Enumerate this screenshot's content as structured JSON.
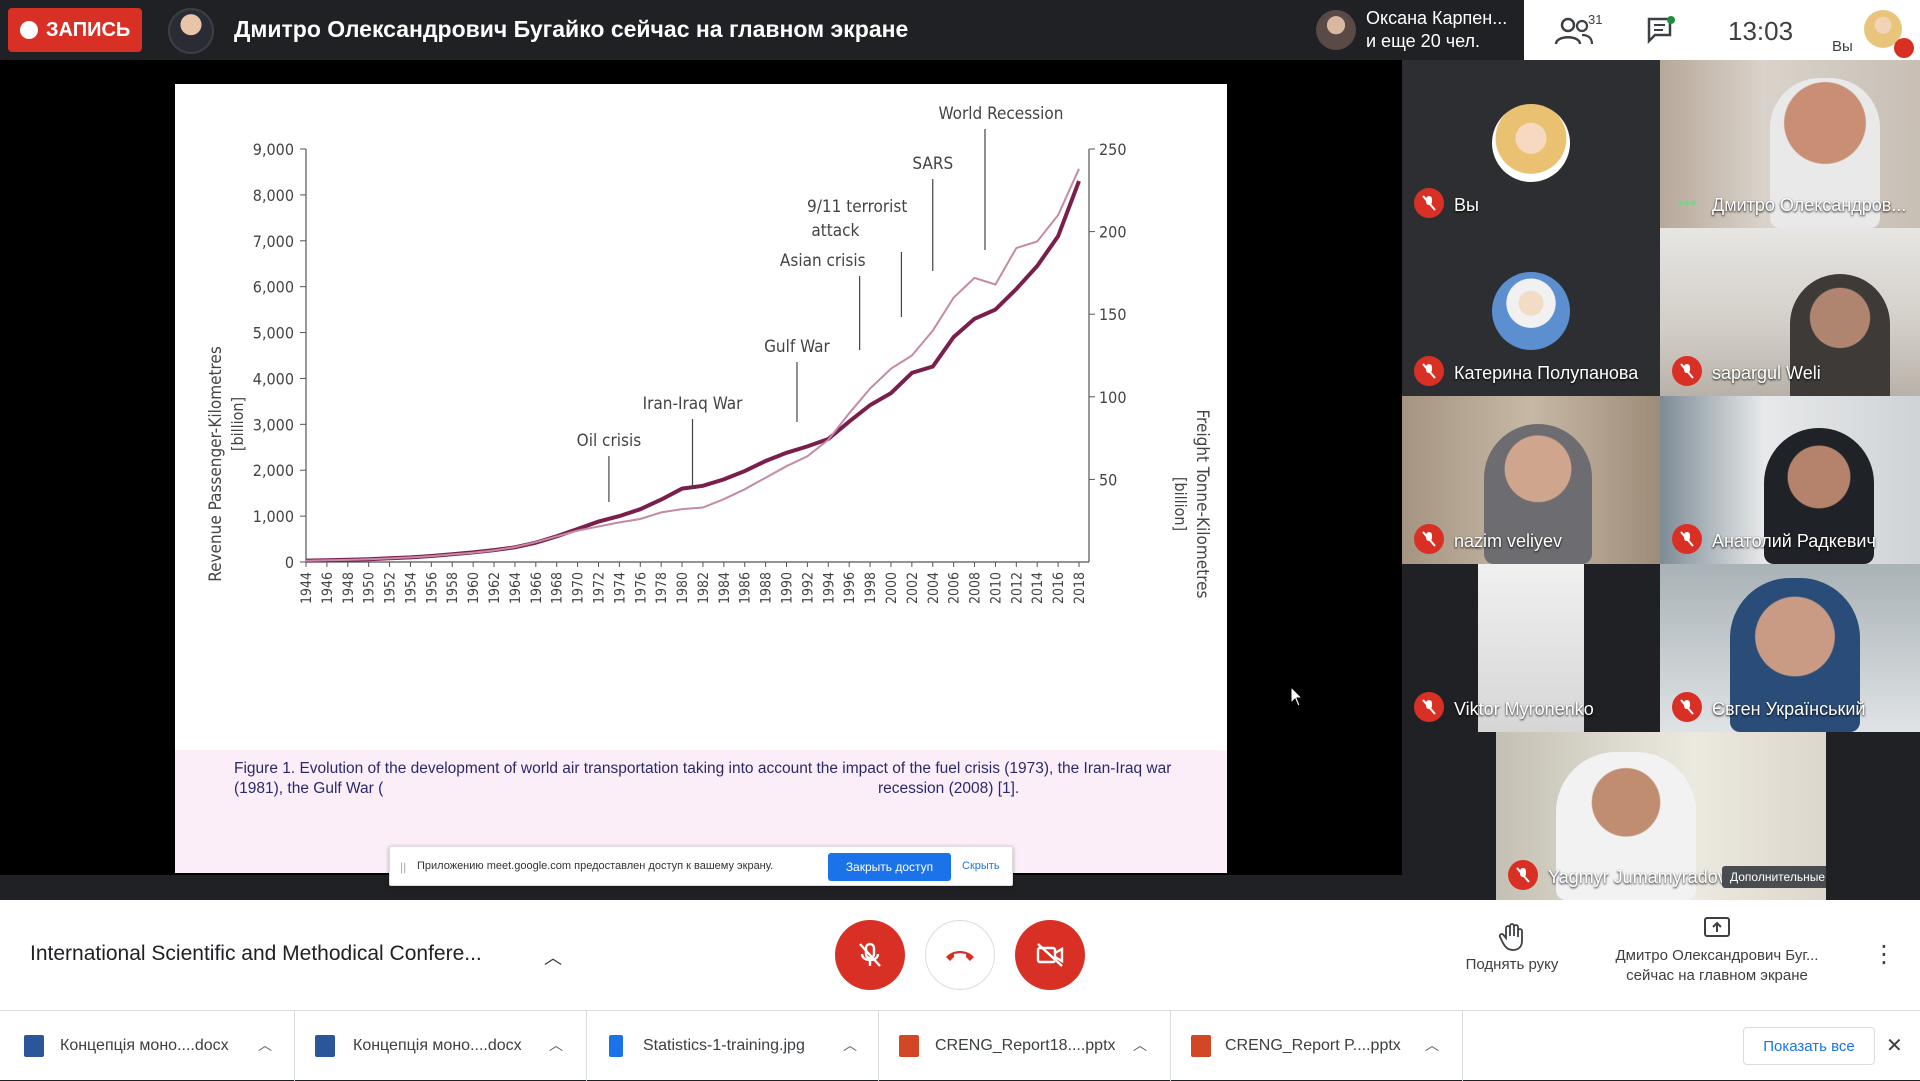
{
  "topbar": {
    "record_label": "ЗАПИСЬ",
    "presenter_title": "Дмитро Олександрович Бугайко сейчас на главном экране",
    "others_line1": "Оксана Карпен...",
    "others_line2": "и еще 20 чел.",
    "people_count": "31",
    "clock": "13:03",
    "you_label": "Вы"
  },
  "slide": {
    "caption_start": "Figure 1. Evolution of the development of world air transportation taking into account the impact of the fuel crisis (1973), the Iran-Iraq war (1981), the Gulf War (",
    "caption_end": "recession (2008) [1]."
  },
  "chart_data": {
    "type": "line",
    "x": [
      1944,
      1946,
      1948,
      1950,
      1952,
      1954,
      1956,
      1958,
      1960,
      1962,
      1964,
      1966,
      1968,
      1970,
      1972,
      1974,
      1976,
      1978,
      1980,
      1982,
      1984,
      1986,
      1988,
      1990,
      1992,
      1994,
      1996,
      1998,
      2000,
      2002,
      2004,
      2006,
      2008,
      2010,
      2012,
      2014,
      2016,
      2018
    ],
    "x_tick_labels": [
      "1944",
      "1946",
      "1948",
      "1950",
      "1952",
      "1954",
      "1956",
      "1958",
      "1960",
      "1962",
      "1964",
      "1966",
      "1968",
      "1970",
      "1972",
      "1974",
      "1976",
      "1978",
      "1980",
      "1982",
      "1984",
      "1986",
      "1988",
      "1990",
      "1992",
      "1994",
      "1996",
      "1998",
      "2000",
      "2002",
      "2004",
      "2006",
      "2008",
      "2010",
      "2012",
      "2014",
      "2016",
      "2018"
    ],
    "ylabel_left": "Revenue Passenger-Kilometres",
    "ylabel_left_unit": "[billion]",
    "ylabel_right": "Freight Tonne-Kilometres",
    "ylabel_right_unit": "[billion]",
    "y_left_ticks": [
      "0",
      "1,000",
      "2,000",
      "3,000",
      "4,000",
      "5,000",
      "6,000",
      "7,000",
      "8,000",
      "9,000"
    ],
    "y_right_ticks": [
      "50",
      "100",
      "150",
      "200",
      "250"
    ],
    "ylim_left": [
      0,
      9000
    ],
    "ylim_right": [
      0,
      250
    ],
    "series": [
      {
        "axis": "left",
        "color": "#7a1f4c",
        "values": [
          30,
          40,
          50,
          60,
          80,
          100,
          130,
          170,
          210,
          260,
          320,
          420,
          560,
          720,
          880,
          1000,
          1150,
          1360,
          1600,
          1660,
          1800,
          1980,
          2200,
          2380,
          2520,
          2680,
          3060,
          3420,
          3680,
          4120,
          4260,
          4900,
          5300,
          5500,
          5950,
          6450,
          7100,
          8300
        ]
      },
      {
        "axis": "right",
        "color": "#c48aa6",
        "values": [
          0.7,
          1,
          1.3,
          1.7,
          2.2,
          2.8,
          3.6,
          4.6,
          5.6,
          7,
          9,
          12,
          15.5,
          19,
          21.5,
          24,
          26,
          30,
          32,
          33,
          38,
          44,
          51,
          58,
          64,
          74,
          90,
          105,
          117,
          125,
          140,
          160,
          172,
          168,
          190,
          194,
          210,
          238
        ]
      }
    ],
    "annotations": [
      {
        "label": "Oil crisis",
        "x": 1973
      },
      {
        "label": "Iran-Iraq War",
        "x": 1981
      },
      {
        "label": "Gulf War",
        "x": 1991
      },
      {
        "label": "Asian crisis",
        "x": 1997
      },
      {
        "label": "9/11 terrorist",
        "label2": "attack",
        "x": 2001
      },
      {
        "label": "SARS",
        "x": 2004
      },
      {
        "label": "World Recession",
        "x": 2009
      }
    ]
  },
  "share_banner": {
    "message": "Приложению meet.google.com предоставлен доступ к вашему экрану.",
    "stop_label": "Закрыть доступ",
    "hide_label": "Скрыть"
  },
  "participants": [
    {
      "name": "Вы"
    },
    {
      "name": "Дмитро Олександров..."
    },
    {
      "name": "Катерина Полупанова"
    },
    {
      "name": "sapargul Weli"
    },
    {
      "name": "nazim veliyev"
    },
    {
      "name": "Анатолий Радкевич"
    },
    {
      "name": "Viktor Myronenko"
    },
    {
      "name": "Євген Український"
    },
    {
      "name": "Yagmyr Jumamyradov"
    }
  ],
  "more_actions_label": "Дополнительные действия",
  "bottombar": {
    "meeting_title": "International Scientific and Methodical Confere...",
    "raise_hand_label": "Поднять руку",
    "present_line1": "Дмитро Олександрович Буг...",
    "present_line2": "сейчас на главном экране"
  },
  "downloads": {
    "items": [
      {
        "name": "Концепція моно....docx",
        "color": "#2b579a"
      },
      {
        "name": "Концепція моно....docx",
        "color": "#2b579a"
      },
      {
        "name": "Statistics-1-training.jpg",
        "color": "#1a73e8"
      },
      {
        "name": "CRENG_Report18....pptx",
        "color": "#d24726"
      },
      {
        "name": "CRENG_Report P....pptx",
        "color": "#d24726"
      }
    ],
    "show_all_label": "Показать все"
  }
}
